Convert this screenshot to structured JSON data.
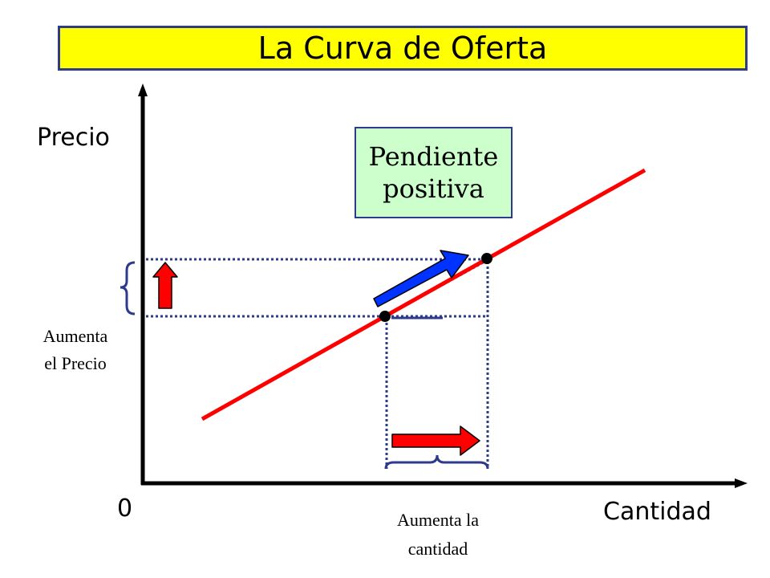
{
  "title": "La Curva de Oferta",
  "axes": {
    "y_label": "Precio",
    "x_label": "Cantidad",
    "origin_label": "0"
  },
  "slope_box": {
    "line1": "Pendiente",
    "line2": "positiva"
  },
  "price_note": {
    "line1": "Aumenta",
    "line2": "el Precio"
  },
  "quantity_note": {
    "line1": "Aumenta la",
    "line2": "cantidad"
  },
  "colors": {
    "title_background": "#ffff00",
    "supply_curve": "#ff0000",
    "guide_lines": "#2e3a8c",
    "movement_arrow": "#0033ff",
    "slope_box_background": "#ccffcc"
  }
}
